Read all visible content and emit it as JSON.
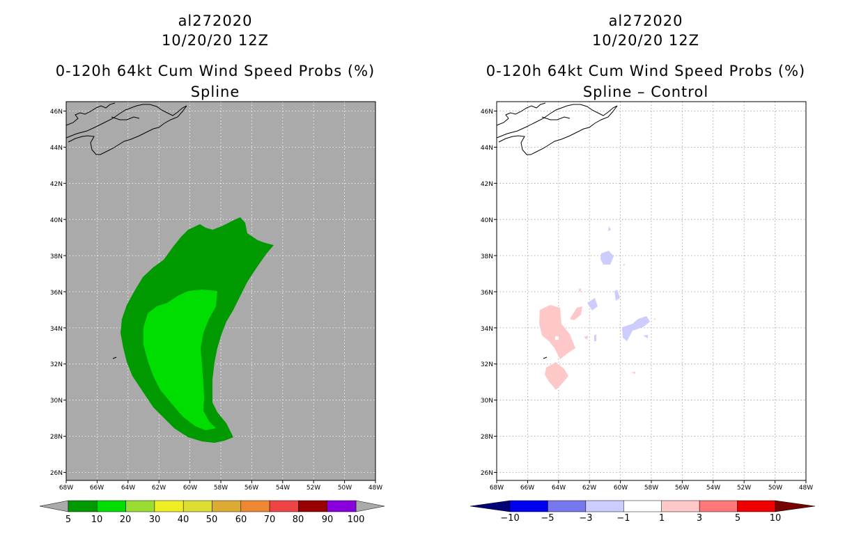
{
  "panels": [
    {
      "id": "left",
      "title_lines": [
        "al272020",
        "10/20/20 12Z",
        "0-120h 64kt Cum Wind Speed Probs (%)",
        "Spline"
      ],
      "background": "#aaaaaa",
      "colorbar": {
        "labels": [
          "5",
          "10",
          "20",
          "30",
          "40",
          "50",
          "60",
          "70",
          "80",
          "90",
          "100"
        ],
        "colors": [
          "#009900",
          "#00dd00",
          "#99dd33",
          "#eeee22",
          "#dddd33",
          "#ddaa33",
          "#ee8833",
          "#ee4444",
          "#990000",
          "#8800dd"
        ],
        "under_color": "#aaaaaa",
        "over_color": "#aaaaaa"
      }
    },
    {
      "id": "right",
      "title_lines": [
        "al272020",
        "10/20/20 12Z",
        "0-120h 64kt Cum Wind Speed Probs (%)",
        "Spline – Control"
      ],
      "background": "#ffffff",
      "colorbar": {
        "labels": [
          "−10",
          "−5",
          "−3",
          "−1",
          "1",
          "3",
          "5",
          "10"
        ],
        "colors": [
          "#0000ee",
          "#7777ee",
          "#ccccff",
          "#ffffff",
          "#ffc8c8",
          "#ff7777",
          "#ee0000"
        ],
        "under_color": "#000077",
        "over_color": "#770000"
      }
    }
  ],
  "axes": {
    "lon_labels": [
      "68W",
      "66W",
      "64W",
      "62W",
      "60W",
      "58W",
      "56W",
      "54W",
      "52W",
      "50W",
      "48W"
    ],
    "lat_labels": [
      "46N",
      "44N",
      "42N",
      "40N",
      "38N",
      "36N",
      "34N",
      "32N",
      "30N",
      "28N",
      "26N"
    ],
    "lon_range": [
      -68,
      -48
    ],
    "lat_range": [
      25.5,
      46.5
    ]
  },
  "legend_colors": {
    "prob_5_10": "#009900",
    "prob_10_20": "#00dd00",
    "diff_neg": "#ccccff",
    "diff_pos": "#ffc8c8"
  }
}
